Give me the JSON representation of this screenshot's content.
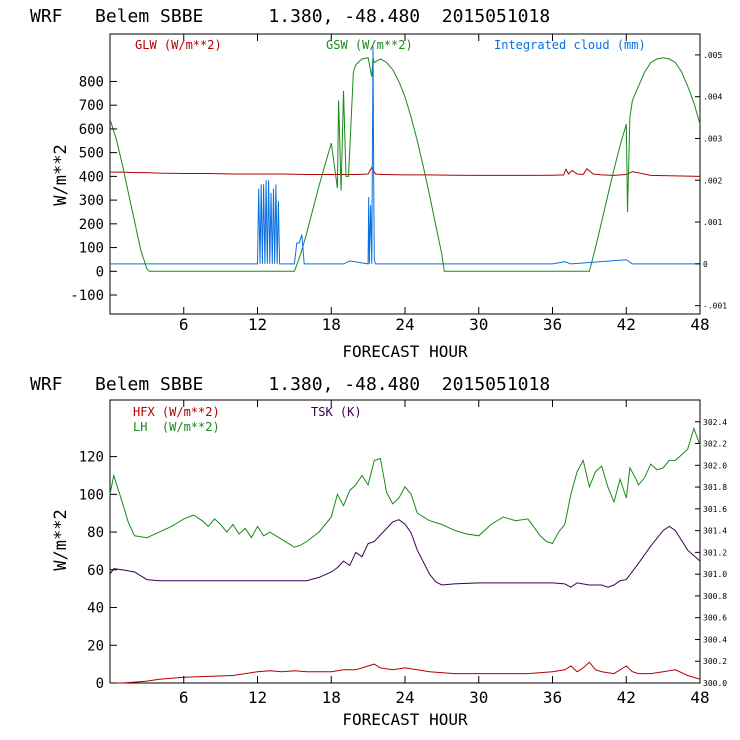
{
  "colors": {
    "red": "#b00000",
    "green": "#1a8a1a",
    "blue": "#0a70e0",
    "purple": "#3c0050",
    "axis": "#000000"
  },
  "chart_data": [
    {
      "type": "line",
      "header": {
        "model": "WRF",
        "station": "Belem SBBE",
        "coords": "1.380, -48.480",
        "init": "2015051018"
      },
      "title": "WRF   Belem SBBE      1.380, -48.480  2015051018",
      "xlabel": "FORECAST HOUR",
      "ylabel": "W/m**2",
      "xlim": [
        0,
        48
      ],
      "ylim": [
        -180,
        1000
      ],
      "xticks": [
        6,
        12,
        18,
        24,
        30,
        36,
        42,
        48
      ],
      "yticks": [
        -100,
        0,
        100,
        200,
        300,
        400,
        500,
        600,
        700,
        800
      ],
      "right_axis": {
        "label": "Integrated cloud (mm)",
        "ylim": [
          -0.0012,
          0.0055
        ],
        "ticks": [
          {
            "v": -0.001,
            "t": "-.001"
          },
          {
            "v": 0,
            "t": "0"
          },
          {
            "v": 0.001,
            "t": ".001"
          },
          {
            "v": 0.002,
            "t": ".002"
          },
          {
            "v": 0.003,
            "t": ".003"
          },
          {
            "v": 0.004,
            "t": ".004"
          },
          {
            "v": 0.005,
            "t": ".005"
          }
        ]
      },
      "legend": [
        {
          "label": "GLW (W/m**2)",
          "color": "red"
        },
        {
          "label": "GSW (W/m**2)",
          "color": "green"
        },
        {
          "label": "Integrated cloud (mm)",
          "color": "blue"
        }
      ],
      "series": [
        {
          "name": "GLW (W/m**2)",
          "color": "red",
          "axis": "left",
          "x": [
            0,
            1,
            2,
            3,
            4,
            6,
            8,
            10,
            12,
            14,
            16,
            18,
            20,
            21,
            21.3,
            21.6,
            22,
            24,
            26,
            28,
            30,
            32,
            34,
            36,
            36.9,
            37.1,
            37.3,
            37.6,
            38,
            38.5,
            38.8,
            39.3,
            40,
            41,
            42,
            42.5,
            44,
            46,
            48
          ],
          "y": [
            418,
            418,
            416,
            416,
            414,
            412,
            412,
            410,
            410,
            410,
            408,
            408,
            408,
            410,
            438,
            410,
            408,
            406,
            406,
            405,
            404,
            404,
            404,
            405,
            406,
            430,
            410,
            425,
            410,
            408,
            432,
            410,
            406,
            404,
            408,
            420,
            404,
            402,
            400
          ]
        },
        {
          "name": "GSW (W/m**2)",
          "color": "green",
          "axis": "left",
          "x": [
            0,
            0.5,
            1,
            1.5,
            2,
            2.5,
            3,
            3.2,
            15,
            15.5,
            16,
            16.5,
            17,
            17.5,
            18,
            18.5,
            18.6,
            18.8,
            19,
            19.2,
            19.4,
            19.8,
            20,
            20.5,
            21,
            21.3,
            21.4,
            21.5,
            22,
            22.5,
            23,
            23.5,
            24,
            24.5,
            25,
            25.5,
            26,
            26.5,
            27,
            27.2,
            39,
            39.5,
            40,
            40.5,
            41,
            41.5,
            42,
            42.1,
            42.3,
            42.5,
            43,
            43.5,
            44,
            44.5,
            45,
            45.5,
            46,
            46.5,
            47,
            47.5,
            48
          ],
          "y": [
            640,
            560,
            450,
            330,
            210,
            90,
            10,
            0,
            0,
            70,
            160,
            260,
            360,
            450,
            540,
            350,
            720,
            340,
            760,
            400,
            400,
            840,
            870,
            895,
            900,
            820,
            900,
            880,
            895,
            880,
            850,
            800,
            735,
            650,
            550,
            440,
            320,
            195,
            70,
            0,
            0,
            100,
            210,
            320,
            430,
            530,
            620,
            250,
            650,
            720,
            780,
            840,
            880,
            895,
            900,
            895,
            880,
            840,
            780,
            710,
            620
          ]
        },
        {
          "name": "Integrated cloud (mm)",
          "color": "blue",
          "axis": "right",
          "x": [
            0,
            12,
            12.1,
            12.2,
            12.3,
            12.4,
            12.5,
            12.6,
            12.7,
            12.8,
            12.9,
            13.0,
            13.1,
            13.2,
            13.3,
            13.4,
            13.5,
            13.6,
            13.7,
            13.8,
            15,
            15.2,
            15.4,
            15.6,
            15.8,
            19,
            19.5,
            21,
            21.05,
            21.1,
            21.2,
            21.3,
            21.35,
            21.4,
            21.45,
            21.5,
            21.55,
            21.6,
            21.7,
            36,
            37,
            37.5,
            42,
            42.5,
            48
          ],
          "y": [
            0,
            0,
            0.0018,
            0,
            0.0019,
            0,
            0.0019,
            0,
            0.002,
            0,
            0.002,
            0,
            0.0017,
            0,
            0.0018,
            0,
            0.0019,
            0,
            0.0015,
            0,
            0,
            0.0005,
            0.0005,
            0.0007,
            0,
            0,
            7e-05,
            0,
            0.0016,
            0,
            0.0014,
            0,
            0.0027,
            0.0052,
            0.002,
            0.0001,
            5e-05,
            0,
            0,
            0,
            5e-05,
            0,
            0.0001,
            0,
            0
          ]
        }
      ]
    },
    {
      "type": "line",
      "header": {
        "model": "WRF",
        "station": "Belem SBBE",
        "coords": "1.380, -48.480",
        "init": "2015051018"
      },
      "title": "WRF   Belem SBBE      1.380, -48.480  2015051018",
      "xlabel": "FORECAST HOUR",
      "ylabel": "W/m**2",
      "xlim": [
        0,
        48
      ],
      "ylim": [
        0,
        150
      ],
      "xticks": [
        6,
        12,
        18,
        24,
        30,
        36,
        42,
        48
      ],
      "yticks": [
        0,
        20,
        40,
        60,
        80,
        100,
        120
      ],
      "right_axis": {
        "label": "TSK (K)",
        "ylim": [
          300.0,
          302.6
        ],
        "ticks": [
          {
            "v": 300.0,
            "t": "300.0"
          },
          {
            "v": 300.2,
            "t": "300.2"
          },
          {
            "v": 300.4,
            "t": "300.4"
          },
          {
            "v": 300.6,
            "t": "300.6"
          },
          {
            "v": 300.8,
            "t": "300.8"
          },
          {
            "v": 301.0,
            "t": "301.0"
          },
          {
            "v": 301.2,
            "t": "301.2"
          },
          {
            "v": 301.4,
            "t": "301.4"
          },
          {
            "v": 301.6,
            "t": "301.6"
          },
          {
            "v": 301.8,
            "t": "301.8"
          },
          {
            "v": 302.0,
            "t": "302.0"
          },
          {
            "v": 302.2,
            "t": "302.2"
          },
          {
            "v": 302.4,
            "t": "302.4"
          }
        ]
      },
      "legend": [
        {
          "label": "HFX (W/m**2)",
          "color": "red"
        },
        {
          "label": "LH  (W/m**2)",
          "color": "green"
        },
        {
          "label": "TSK (K)",
          "color": "purple"
        }
      ],
      "series": [
        {
          "name": "HFX (W/m**2)",
          "color": "red",
          "axis": "left",
          "x": [
            0,
            1,
            2,
            3,
            4,
            6,
            8,
            10,
            12,
            13,
            14,
            15,
            16,
            17,
            18,
            19,
            20,
            21,
            21.5,
            22,
            23,
            24,
            25,
            26,
            28,
            30,
            32,
            34,
            36,
            37,
            37.5,
            38,
            38.5,
            39,
            39.5,
            40,
            41,
            42,
            42.5,
            43,
            44,
            45,
            46,
            47,
            48
          ],
          "y": [
            0,
            0,
            0.5,
            1,
            2,
            3,
            3.5,
            4,
            6,
            6.5,
            6,
            6.5,
            6,
            6,
            6,
            7,
            7,
            9,
            10,
            8,
            7,
            8,
            7,
            6,
            5,
            5,
            5,
            5,
            6,
            7,
            9,
            6,
            8,
            11,
            7,
            6,
            5,
            9,
            6,
            5,
            5,
            6,
            7,
            4,
            2
          ]
        },
        {
          "name": "LH  (W/m**2)",
          "color": "green",
          "axis": "left",
          "x": [
            0,
            0.3,
            0.8,
            1.5,
            2,
            3,
            4,
            5,
            6,
            6.8,
            7.5,
            8,
            8.5,
            9,
            9.5,
            10,
            10.5,
            11,
            11.5,
            12,
            12.5,
            13,
            14,
            15,
            15.5,
            16,
            17,
            18,
            18.5,
            19,
            19.5,
            20,
            20.5,
            21,
            21.5,
            22,
            22.5,
            23,
            23.5,
            24,
            24.5,
            25,
            26,
            27,
            28,
            29,
            30,
            31,
            32,
            33,
            34,
            35,
            35.5,
            36,
            36.5,
            37,
            37.5,
            38,
            38.5,
            39,
            39.5,
            40,
            40.5,
            41,
            41.5,
            42,
            42.3,
            42.8,
            43,
            43.5,
            44,
            44.5,
            45,
            45.5,
            46,
            46.5,
            47,
            47.5,
            48
          ],
          "y": [
            100,
            110,
            100,
            85,
            78,
            77,
            80,
            83,
            87,
            89,
            86,
            83,
            87,
            84,
            80,
            84,
            79,
            82,
            77,
            83,
            78,
            80,
            76,
            72,
            73,
            75,
            80,
            88,
            100,
            94,
            102,
            105,
            110,
            105,
            118,
            119,
            101,
            95,
            98,
            104,
            100,
            90,
            86,
            84,
            81,
            79,
            78,
            84,
            88,
            86,
            87,
            78,
            75,
            74,
            80,
            84,
            100,
            112,
            118,
            104,
            112,
            115,
            104,
            96,
            108,
            98,
            114,
            108,
            105,
            109,
            116,
            113,
            114,
            118,
            118,
            121,
            124,
            135,
            126
          ]
        },
        {
          "name": "TSK (K)",
          "color": "purple",
          "axis": "right",
          "x": [
            0,
            0.3,
            1,
            2,
            3,
            4,
            6,
            8,
            10,
            12,
            14,
            16,
            17,
            18,
            18.5,
            19,
            19.5,
            20,
            20.5,
            21,
            21.5,
            22,
            23,
            23.5,
            24,
            24.5,
            25,
            26,
            26.5,
            27,
            28,
            30,
            32,
            34,
            36,
            37,
            37.5,
            38,
            39,
            40,
            40.5,
            41,
            41.5,
            42,
            43,
            44,
            45,
            45.5,
            46,
            47,
            48
          ],
          "y": [
            301.0,
            301.05,
            301.04,
            301.02,
            300.95,
            300.94,
            300.94,
            300.94,
            300.94,
            300.94,
            300.94,
            300.94,
            300.97,
            301.02,
            301.06,
            301.12,
            301.08,
            301.2,
            301.16,
            301.28,
            301.3,
            301.36,
            301.48,
            301.5,
            301.46,
            301.38,
            301.22,
            301.0,
            300.93,
            300.9,
            300.91,
            300.92,
            300.92,
            300.92,
            300.92,
            300.91,
            300.88,
            300.92,
            300.9,
            300.9,
            300.88,
            300.9,
            300.94,
            300.95,
            301.1,
            301.26,
            301.4,
            301.44,
            301.4,
            301.22,
            301.12
          ]
        }
      ]
    }
  ]
}
